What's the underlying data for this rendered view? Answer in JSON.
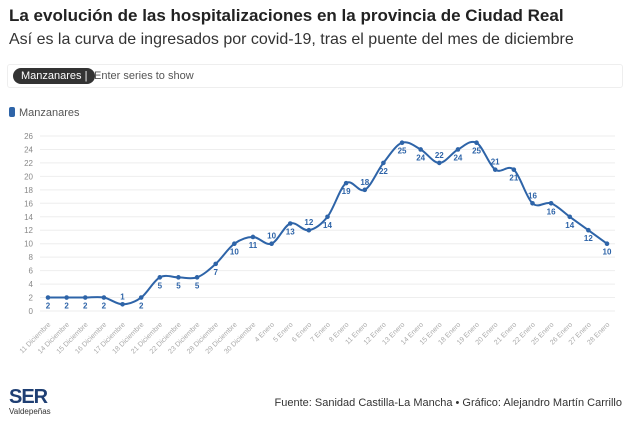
{
  "header": {
    "title": "La evolución de las hospitalizaciones en la provincia de Ciudad Real",
    "subtitle": "Así es la curva de ingresados por covid-19, tras el puente del mes de diciembre"
  },
  "filter": {
    "chip": "Manzanares |",
    "placeholder": "Enter series to show"
  },
  "footer": {
    "logo": "SER",
    "logo_sub": "Valdepeñas",
    "source": "Fuente: Sanidad Castilla-La Mancha • Gráfico: Alejandro Martín Carrillo"
  },
  "chart_data": {
    "type": "line",
    "color": "#2e64a8",
    "legend": "top-left",
    "grid": true,
    "ylim": [
      0,
      26
    ],
    "yticks": [
      0,
      2,
      4,
      6,
      8,
      10,
      12,
      14,
      16,
      18,
      20,
      22,
      24,
      26
    ],
    "categories": [
      "11 Diciembre",
      "14 Diciembre",
      "15 Diciembre",
      "16 Diciembre",
      "17 Diciembre",
      "18 Diciembre",
      "21 Diciembre",
      "22 Diciembre",
      "23 Diciembre",
      "28 Diciembre",
      "29 Diciembre",
      "30 Diciembre",
      "4 Enero",
      "5 Enero",
      "6 Enero",
      "7 Enero",
      "8 Enero",
      "11 Enero",
      "12 Enero",
      "13 Enero",
      "14 Enero",
      "15 Enero",
      "18 Enero",
      "19 Enero",
      "20 Enero",
      "21 Enero",
      "22 Enero",
      "25 Enero",
      "26 Enero",
      "27 Enero",
      "28 Enero"
    ],
    "series": [
      {
        "name": "Manzanares",
        "values": [
          2,
          2,
          2,
          2,
          1,
          2,
          5,
          5,
          5,
          7,
          10,
          11,
          10,
          13,
          12,
          14,
          19,
          18,
          22,
          25,
          24,
          22,
          24,
          25,
          21,
          21,
          16,
          16,
          14,
          12,
          10
        ]
      }
    ]
  }
}
